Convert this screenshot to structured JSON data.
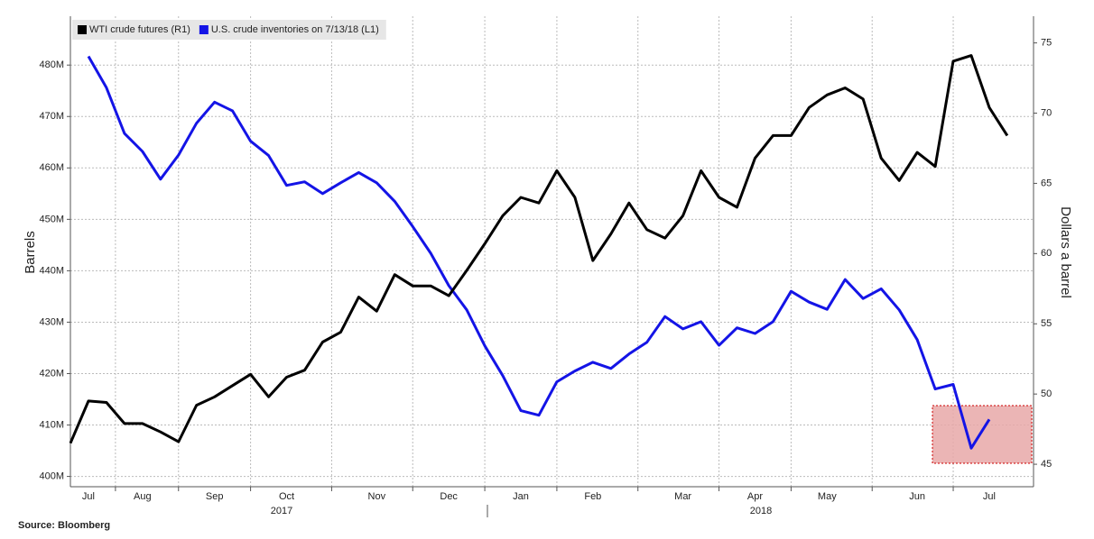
{
  "chart_data": {
    "type": "line",
    "y_label": "Barrels",
    "y2_label": "Dollars a barrel",
    "source": "Source:  Bloomberg",
    "years": [
      "2017",
      "2018"
    ],
    "categories": [
      null,
      "Jul",
      null,
      null,
      "Aug",
      null,
      null,
      null,
      "Sep",
      null,
      null,
      null,
      "Oct",
      null,
      null,
      null,
      null,
      "Nov",
      null,
      null,
      null,
      "Dec",
      null,
      null,
      null,
      "Jan",
      null,
      null,
      null,
      "Feb",
      null,
      null,
      null,
      null,
      "Mar",
      null,
      null,
      null,
      "Apr",
      null,
      null,
      null,
      "May",
      null,
      null,
      null,
      null,
      "Jun",
      null,
      null,
      null,
      "Jul",
      null,
      null
    ],
    "series": [
      {
        "name": "WTI crude futures (R1)",
        "color": "#000000",
        "axis": "y2",
        "values": [
          46.5,
          49.5,
          49.4,
          47.9,
          47.9,
          47.3,
          46.6,
          49.2,
          49.8,
          50.6,
          51.4,
          49.8,
          51.2,
          51.7,
          53.7,
          54.4,
          56.9,
          55.9,
          58.5,
          57.7,
          57.7,
          57.0,
          58.8,
          60.7,
          62.7,
          64.0,
          63.6,
          65.9,
          64.0,
          59.5,
          61.4,
          63.6,
          61.7,
          61.1,
          62.7,
          65.9,
          64.0,
          63.3,
          66.8,
          68.4,
          68.4,
          70.4,
          71.3,
          71.8,
          71.0,
          66.8,
          65.2,
          67.2,
          66.2,
          73.7,
          74.1,
          70.4,
          68.4,
          null
        ]
      },
      {
        "name": "U.S. crude inventories on 7/13/18 (L1)",
        "color": "#1414e6",
        "axis": "y",
        "values": [
          null,
          481.7,
          475.6,
          466.7,
          463.2,
          457.8,
          462.5,
          468.7,
          472.8,
          471.1,
          465.2,
          462.4,
          456.6,
          457.3,
          455.0,
          457.1,
          459.1,
          457.1,
          453.5,
          448.6,
          443.4,
          437.1,
          432.4,
          425.4,
          419.6,
          412.8,
          411.9,
          418.4,
          420.5,
          422.2,
          421.0,
          423.8,
          426.1,
          431.1,
          428.7,
          430.1,
          425.5,
          428.9,
          427.8,
          430.1,
          436.0,
          433.9,
          432.5,
          438.3,
          434.6,
          436.5,
          432.4,
          426.6,
          417.0,
          417.9,
          405.5,
          411.1,
          null,
          null
        ]
      }
    ],
    "ylim": [
      398,
      489.5
    ],
    "yticks": [
      {
        "value": 400,
        "label": "400M"
      },
      {
        "value": 410,
        "label": "410M"
      },
      {
        "value": 420,
        "label": "420M"
      },
      {
        "value": 430,
        "label": "430M"
      },
      {
        "value": 440,
        "label": "440M"
      },
      {
        "value": 450,
        "label": "450M"
      },
      {
        "value": 460,
        "label": "460M"
      },
      {
        "value": 470,
        "label": "470M"
      },
      {
        "value": 480,
        "label": "480M"
      }
    ],
    "y2lim": [
      43.4,
      76.9
    ],
    "y2ticks": [
      45,
      50,
      55,
      60,
      65,
      70,
      75
    ],
    "grid": true,
    "legend": "top-left"
  }
}
